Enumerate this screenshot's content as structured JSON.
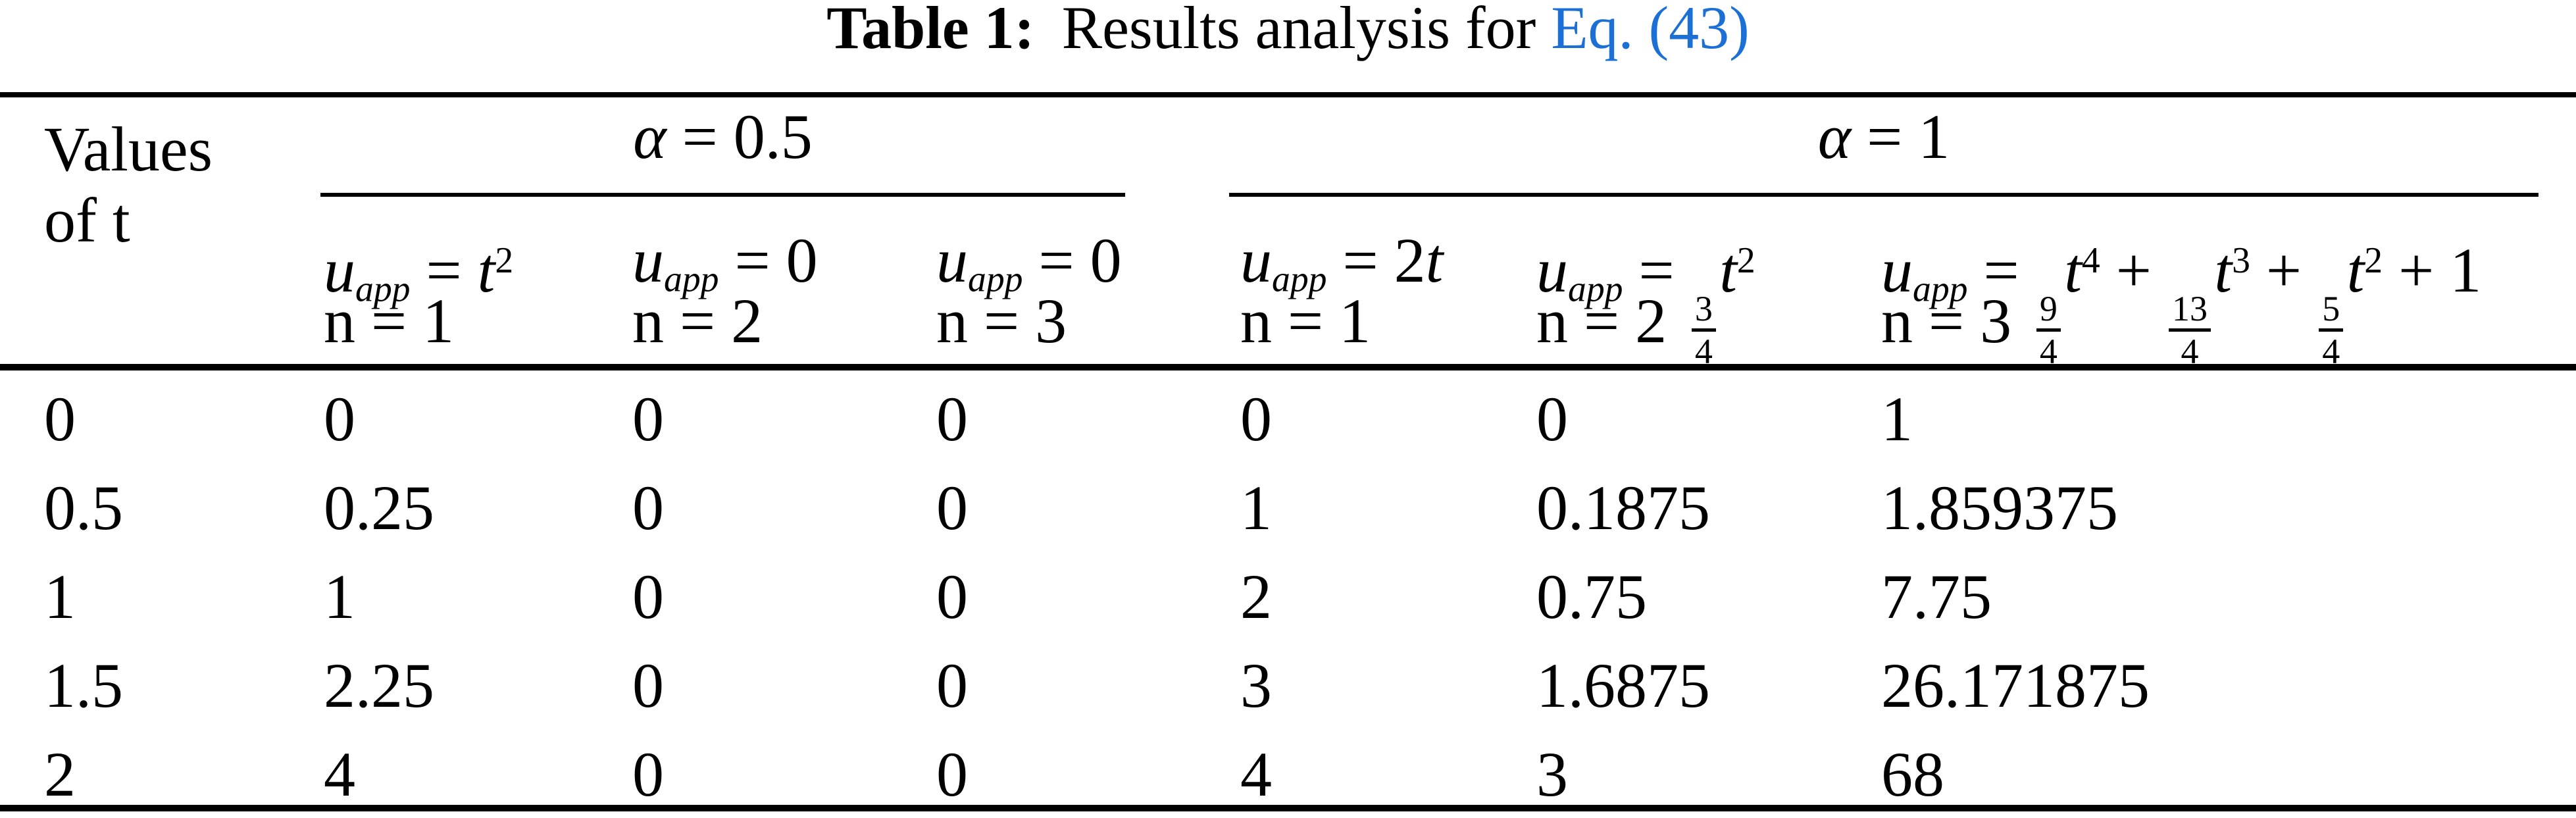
{
  "caption": {
    "label": "Table 1:",
    "text": "Results analysis for ",
    "link": "Eq. (43)"
  },
  "colors": {
    "text": "#000000",
    "background": "#FFFFFF",
    "link_blue": "#1B6FD5",
    "rule": "#000000"
  },
  "stub": {
    "line1": "Values",
    "line2": "of t"
  },
  "groups": [
    {
      "symbol": "α",
      "eq": " = 0.5"
    },
    {
      "symbol": "α",
      "eq": " = 1"
    }
  ],
  "columns": [
    {
      "group": 0,
      "n_label": "n = 1",
      "formula_plain": "u_app = t^2",
      "formula": [
        {
          "t": "var",
          "v": "u"
        },
        {
          "t": "sub",
          "v": "app"
        },
        {
          "t": "txt",
          "v": " = "
        },
        {
          "t": "var",
          "v": "t"
        },
        {
          "t": "sup",
          "v": "2"
        }
      ]
    },
    {
      "group": 0,
      "n_label": "n = 2",
      "formula_plain": "u_app = 0",
      "formula": [
        {
          "t": "var",
          "v": "u"
        },
        {
          "t": "sub",
          "v": "app"
        },
        {
          "t": "txt",
          "v": " = 0"
        }
      ]
    },
    {
      "group": 0,
      "n_label": "n = 3",
      "formula_plain": "u_app = 0",
      "formula": [
        {
          "t": "var",
          "v": "u"
        },
        {
          "t": "sub",
          "v": "app"
        },
        {
          "t": "txt",
          "v": " = 0"
        }
      ]
    },
    {
      "group": 1,
      "n_label": "n = 1",
      "formula_plain": "u_app = 2t",
      "formula": [
        {
          "t": "var",
          "v": "u"
        },
        {
          "t": "sub",
          "v": "app"
        },
        {
          "t": "txt",
          "v": " = 2"
        },
        {
          "t": "var",
          "v": "t"
        }
      ]
    },
    {
      "group": 1,
      "n_label": "n = 2",
      "formula_plain": "u_app = (3/4)t^2",
      "formula": [
        {
          "t": "var",
          "v": "u"
        },
        {
          "t": "sub",
          "v": "app"
        },
        {
          "t": "txt",
          "v": " = "
        },
        {
          "t": "frac",
          "num": "3",
          "den": "4"
        },
        {
          "t": "var",
          "v": "t"
        },
        {
          "t": "sup",
          "v": "2"
        }
      ]
    },
    {
      "group": 1,
      "n_label": "n = 3",
      "formula_plain": "u_app = (9/4)t^4 + (13/4)t^3 + (5/4)t^2 + 1",
      "formula": [
        {
          "t": "var",
          "v": "u"
        },
        {
          "t": "sub",
          "v": "app"
        },
        {
          "t": "txt",
          "v": " = "
        },
        {
          "t": "frac",
          "num": "9",
          "den": "4"
        },
        {
          "t": "var",
          "v": "t"
        },
        {
          "t": "sup",
          "v": "4"
        },
        {
          "t": "txt",
          "v": " + "
        },
        {
          "t": "frac",
          "num": "13",
          "den": "4"
        },
        {
          "t": "var",
          "v": "t"
        },
        {
          "t": "sup",
          "v": "3"
        },
        {
          "t": "txt",
          "v": " + "
        },
        {
          "t": "frac",
          "num": "5",
          "den": "4"
        },
        {
          "t": "var",
          "v": "t"
        },
        {
          "t": "sup",
          "v": "2"
        },
        {
          "t": "txt",
          "v": " + 1"
        }
      ]
    }
  ],
  "rows": [
    {
      "t": "0",
      "cells": [
        "0",
        "0",
        "0",
        "0",
        "0",
        "1"
      ]
    },
    {
      "t": "0.5",
      "cells": [
        "0.25",
        "0",
        "0",
        "1",
        "0.1875",
        "1.859375"
      ]
    },
    {
      "t": "1",
      "cells": [
        "1",
        "0",
        "0",
        "2",
        "0.75",
        "7.75"
      ]
    },
    {
      "t": "1.5",
      "cells": [
        "2.25",
        "0",
        "0",
        "3",
        "1.6875",
        "26.171875"
      ]
    },
    {
      "t": "2",
      "cells": [
        "4",
        "0",
        "0",
        "4",
        "3",
        "68"
      ]
    }
  ]
}
